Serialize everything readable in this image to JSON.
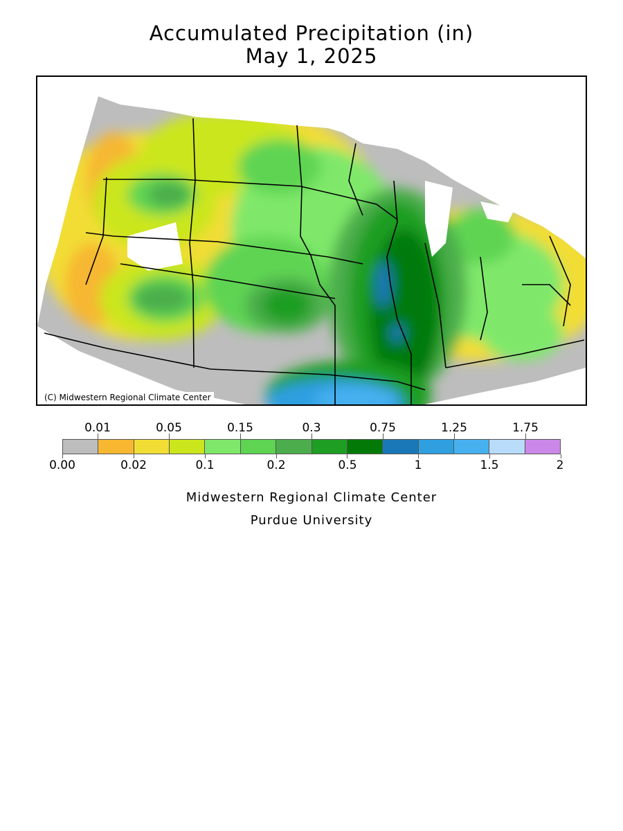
{
  "header": {
    "title": "Accumulated Precipitation (in)",
    "date": "May 1, 2025"
  },
  "map": {
    "copyright": "(C) Midwestern Regional Climate Center"
  },
  "legend": {
    "top_labels": [
      "0.01",
      "0.05",
      "0.15",
      "0.3",
      "0.75",
      "1.25",
      "1.75"
    ],
    "bottom_labels": [
      "0.00",
      "0.02",
      "0.1",
      "0.2",
      "0.5",
      "1",
      "1.5",
      "2"
    ],
    "colors": [
      "#bdbdbd",
      "#f7b731",
      "#f2dd35",
      "#cbe61c",
      "#7fe86b",
      "#5ed452",
      "#4cad4c",
      "#1e9e22",
      "#037a08",
      "#1a78b8",
      "#2f9fe0",
      "#47b1f0",
      "#b8dcfa",
      "#cc88e8"
    ]
  },
  "footer": {
    "org": "Midwestern Regional Climate Center",
    "university": "Purdue University"
  }
}
